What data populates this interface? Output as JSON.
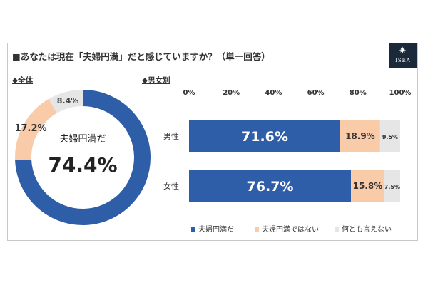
{
  "title": "■あなたは現在「夫婦円満」だと感じていますか？（単一回答）",
  "logo": {
    "text": "ISEA",
    "icon": "sun-icon"
  },
  "sections": {
    "overall": "◆全体",
    "by_gender": "◆男女別"
  },
  "colors": {
    "blue": "#2e5ea8",
    "peach": "#f9cba9",
    "gray": "#e6e6e6"
  },
  "donut_center": {
    "label": "夫婦円満だ",
    "value": "74.4%"
  },
  "donut_labels": {
    "peach": "17.2%",
    "gray": "8.4%"
  },
  "bar_labels": {
    "male": {
      "blue": "71.6%",
      "peach": "18.9%",
      "gray": "9.5%"
    },
    "female": {
      "blue": "76.7%",
      "peach": "15.8%",
      "gray": "7.5%"
    }
  },
  "chart_data": [
    {
      "type": "pie",
      "categories": [
        "夫婦円満だ",
        "夫婦円満ではない",
        "何とも言えない"
      ],
      "values": [
        74.4,
        17.2,
        8.4
      ]
    },
    {
      "type": "bar",
      "orientation": "horizontal",
      "stacked": true,
      "categories": [
        "男性",
        "女性"
      ],
      "series": [
        {
          "name": "夫婦円満だ",
          "values": [
            71.6,
            76.7
          ]
        },
        {
          "name": "夫婦円満ではない",
          "values": [
            18.9,
            15.8
          ]
        },
        {
          "name": "何とも言えない",
          "values": [
            9.5,
            7.5
          ]
        }
      ],
      "xlim": [
        0,
        100
      ],
      "x_ticks": [
        "0%",
        "20%",
        "40%",
        "60%",
        "80%",
        "100%"
      ],
      "legend": "bottom"
    }
  ]
}
